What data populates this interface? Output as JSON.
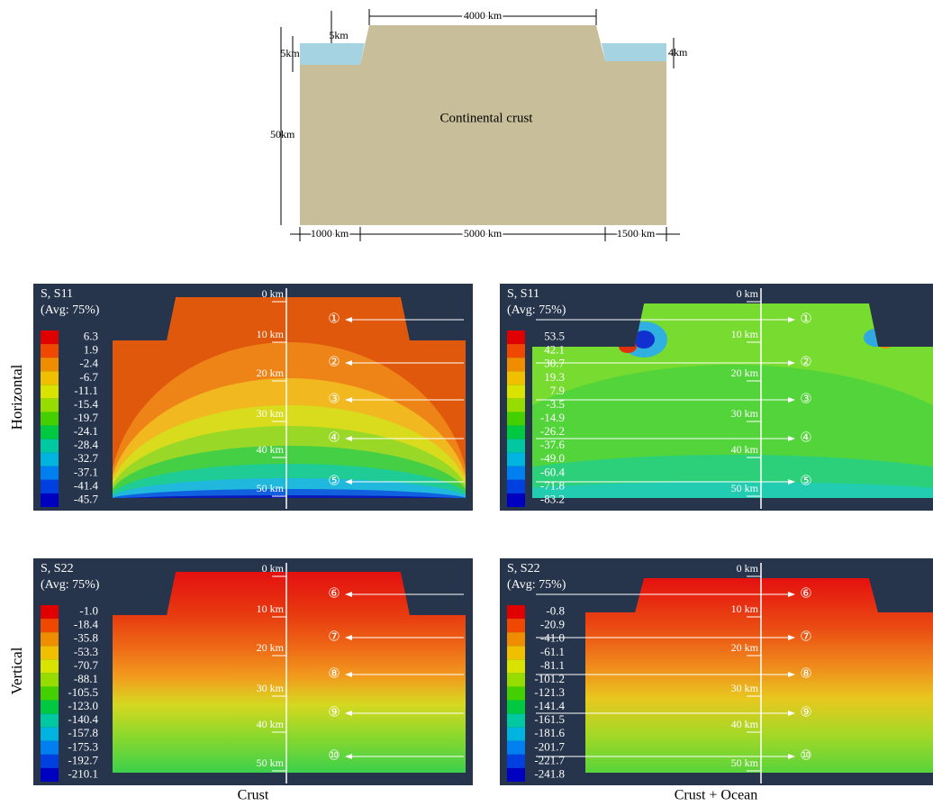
{
  "schematic": {
    "labels": {
      "top_depth": "5km",
      "left_depth": "5km",
      "plateau_width": "4000 km",
      "right_depth": "4km",
      "crust": "Continental crust",
      "thickness": "50km",
      "left_width": "1000 km",
      "middle_width": "5000 km",
      "right_width": "1500 km"
    }
  },
  "row_labels": [
    "Horizontal",
    "Vertical"
  ],
  "column_labels": [
    "Crust",
    "Crust + Ocean"
  ],
  "panels": [
    {
      "title": "S, S11",
      "subtitle": "(Avg: 75%)",
      "legend": [
        "6.3",
        "1.9",
        "-2.4",
        "-6.7",
        "-11.1",
        "-15.4",
        "-19.7",
        "-24.1",
        "-28.4",
        "-32.7",
        "-37.1",
        "-41.4",
        "-45.7"
      ],
      "depths": [
        "0 km",
        "10 km",
        "20 km",
        "30 km",
        "40 km",
        "50 km"
      ],
      "markers": [
        "①",
        "②",
        "③",
        "④",
        "⑤"
      ]
    },
    {
      "title": "S, S11",
      "subtitle": "(Avg: 75%)",
      "legend": [
        "53.5",
        "42.1",
        "30.7",
        "19.3",
        "7.9",
        "-3.5",
        "-14.9",
        "-26.2",
        "-37.6",
        "-49.0",
        "-60.4",
        "-71.8",
        "-83.2"
      ],
      "depths": [
        "0 km",
        "10 km",
        "20 km",
        "30 km",
        "40 km",
        "50 km"
      ],
      "markers": [
        "①",
        "②",
        "③",
        "④",
        "⑤"
      ]
    },
    {
      "title": "S, S22",
      "subtitle": "(Avg: 75%)",
      "legend": [
        "-1.0",
        "-18.4",
        "-35.8",
        "-53.3",
        "-70.7",
        "-88.1",
        "-105.5",
        "-123.0",
        "-140.4",
        "-157.8",
        "-175.3",
        "-192.7",
        "-210.1"
      ],
      "depths": [
        "0 km",
        "10 km",
        "20 km",
        "30 km",
        "40 km",
        "50 km"
      ],
      "markers": [
        "⑥",
        "⑦",
        "⑧",
        "⑨",
        "⑩"
      ]
    },
    {
      "title": "S, S22",
      "subtitle": "(Avg: 75%)",
      "legend": [
        "-0.8",
        "-20.9",
        "-41.0",
        "-61.1",
        "-81.1",
        "-101.2",
        "-121.3",
        "-141.4",
        "-161.5",
        "-181.6",
        "-201.7",
        "-221.7",
        "-241.8"
      ],
      "depths": [
        "0 km",
        "10 km",
        "20 km",
        "30 km",
        "40 km",
        "50 km"
      ],
      "markers": [
        "⑥",
        "⑦",
        "⑧",
        "⑨",
        "⑩"
      ]
    }
  ]
}
